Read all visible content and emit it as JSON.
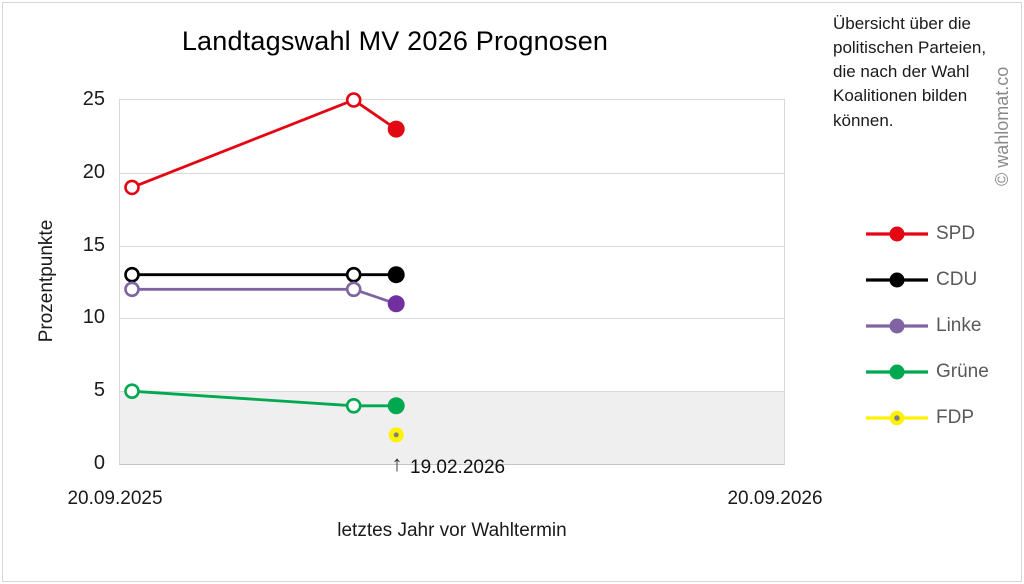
{
  "title": "Landtagswahl MV 2026 Prognosen",
  "info_text": "Übersicht über die politischen Parteien, die nach der Wahl Koalitionen bilden können.",
  "watermark": "© wahlomat.co",
  "colors": {
    "grid": "#d9d9d9",
    "band": "#efefef",
    "frame_border": "#d6d6d6",
    "legend_text": "#595959",
    "watermark_text": "#8a8a8a"
  },
  "chart_data": {
    "type": "line",
    "title": "Landtagswahl MV 2026 Prognosen",
    "xlabel": "letztes Jahr vor Wahltermin",
    "ylabel": "Prozentpunkte",
    "ylim": [
      0,
      25
    ],
    "yticks": [
      25,
      20,
      15,
      10,
      5,
      0
    ],
    "x_axis_labels": [
      "20.09.2025",
      "20.09.2026"
    ],
    "grid": true,
    "threshold_band": {
      "from": 0,
      "to": 5,
      "color": "#efefef"
    },
    "annotation": {
      "arrow": "↑",
      "label": "19.02.2026",
      "x_frac": 0.416
    },
    "legend_position": "right",
    "series": [
      {
        "name": "SPD",
        "color": "#e30613",
        "x_frac": [
          0.018,
          0.352,
          0.416
        ],
        "values": [
          19,
          25,
          23
        ],
        "markers": [
          "open",
          "open",
          "filled"
        ]
      },
      {
        "name": "CDU",
        "color": "#000000",
        "x_frac": [
          0.018,
          0.352,
          0.416
        ],
        "values": [
          13,
          13,
          13
        ],
        "markers": [
          "open",
          "open",
          "filled"
        ]
      },
      {
        "name": "Linke",
        "color": "#8064a2",
        "last_color": "#7030a0",
        "x_frac": [
          0.018,
          0.352,
          0.416
        ],
        "values": [
          12,
          12,
          11
        ],
        "markers": [
          "open",
          "open",
          "filled"
        ]
      },
      {
        "name": "Grüne",
        "color": "#00a94f",
        "x_frac": [
          0.018,
          0.352,
          0.416
        ],
        "values": [
          5,
          4,
          4
        ],
        "markers": [
          "open",
          "open",
          "filled"
        ]
      },
      {
        "name": "FDP",
        "color": "#fff200",
        "dot_color": "#808080",
        "x_frac": [
          0.416
        ],
        "values": [
          2
        ],
        "markers": [
          "gray-ring"
        ]
      }
    ]
  }
}
